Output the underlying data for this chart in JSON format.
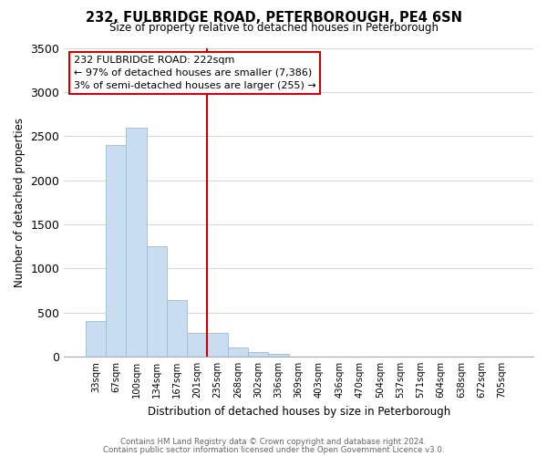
{
  "title": "232, FULBRIDGE ROAD, PETERBOROUGH, PE4 6SN",
  "subtitle": "Size of property relative to detached houses in Peterborough",
  "xlabel": "Distribution of detached houses by size in Peterborough",
  "ylabel": "Number of detached properties",
  "bar_labels": [
    "33sqm",
    "67sqm",
    "100sqm",
    "134sqm",
    "167sqm",
    "201sqm",
    "235sqm",
    "268sqm",
    "302sqm",
    "336sqm",
    "369sqm",
    "403sqm",
    "436sqm",
    "470sqm",
    "504sqm",
    "537sqm",
    "571sqm",
    "604sqm",
    "638sqm",
    "672sqm",
    "705sqm"
  ],
  "bar_values": [
    400,
    2400,
    2600,
    1250,
    640,
    270,
    270,
    100,
    50,
    30,
    0,
    0,
    0,
    0,
    0,
    0,
    0,
    0,
    0,
    0,
    0
  ],
  "bar_color": "#c8ddef",
  "bar_edge_color": "#9bbdd4",
  "vline_color": "#cc0000",
  "annotation_lines": [
    "232 FULBRIDGE ROAD: 222sqm",
    "← 97% of detached houses are smaller (7,386)",
    "3% of semi-detached houses are larger (255) →"
  ],
  "ylim": [
    0,
    3500
  ],
  "yticks": [
    0,
    500,
    1000,
    1500,
    2000,
    2500,
    3000,
    3500
  ],
  "footer_line1": "Contains HM Land Registry data © Crown copyright and database right 2024.",
  "footer_line2": "Contains public sector information licensed under the Open Government Licence v3.0.",
  "bg_color": "#ffffff",
  "grid_color": "#d0d8e4"
}
